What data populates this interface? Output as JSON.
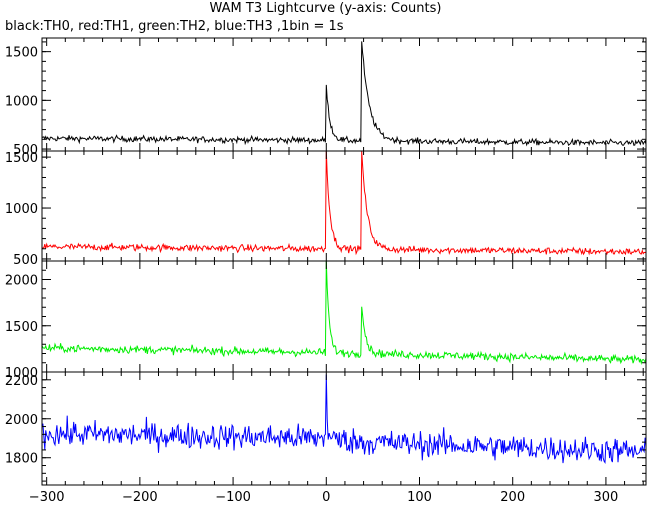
{
  "chart_data": {
    "type": "line",
    "title": "WAM T3 Lightcurve (y-axis: Counts)",
    "subtitle": "black:TH0, red:TH1, green:TH2, blue:TH3 ,1bin = 1s",
    "x_range": [
      -305,
      343
    ],
    "x_ticks": [
      -300,
      -200,
      -100,
      0,
      100,
      200,
      300
    ],
    "panels": [
      {
        "name": "TH0",
        "color": "#000000",
        "ylim": [
          480,
          1640
        ],
        "y_ticks": [
          500,
          1000,
          1500
        ],
        "baseline_points": [
          [
            -305,
            610
          ],
          [
            0,
            590
          ],
          [
            40,
            585
          ],
          [
            343,
            560
          ]
        ],
        "noise": 25,
        "peaks": [
          {
            "x": 0,
            "y": 1140,
            "decay": 4
          },
          {
            "x": 38,
            "y": 1600,
            "decay": 8
          }
        ]
      },
      {
        "name": "TH1",
        "color": "#ff0000",
        "ylim": [
          480,
          1560
        ],
        "y_ticks": [
          500,
          1000,
          1500
        ],
        "baseline_points": [
          [
            -305,
            620
          ],
          [
            0,
            600
          ],
          [
            40,
            595
          ],
          [
            343,
            570
          ]
        ],
        "noise": 28,
        "peaks": [
          {
            "x": 0,
            "y": 1560,
            "decay": 4
          },
          {
            "x": 38,
            "y": 1560,
            "decay": 6
          }
        ]
      },
      {
        "name": "TH2",
        "color": "#00ee00",
        "ylim": [
          1000,
          2200
        ],
        "y_ticks": [
          1000,
          1500,
          2000
        ],
        "baseline_points": [
          [
            -305,
            1260
          ],
          [
            0,
            1210
          ],
          [
            40,
            1200
          ],
          [
            343,
            1130
          ]
        ],
        "noise": 35,
        "peaks": [
          {
            "x": 0,
            "y": 2200,
            "decay": 3
          },
          {
            "x": 38,
            "y": 1750,
            "decay": 4
          }
        ]
      },
      {
        "name": "TH3",
        "color": "#0000ff",
        "ylim": [
          1660,
          2240
        ],
        "y_ticks": [
          1800,
          2000,
          2200
        ],
        "baseline_points": [
          [
            -305,
            1925
          ],
          [
            0,
            1900
          ],
          [
            40,
            1880
          ],
          [
            343,
            1830
          ]
        ],
        "noise": 55,
        "peaks": [
          {
            "x": 0,
            "y": 2240,
            "decay": 1
          }
        ]
      }
    ]
  }
}
